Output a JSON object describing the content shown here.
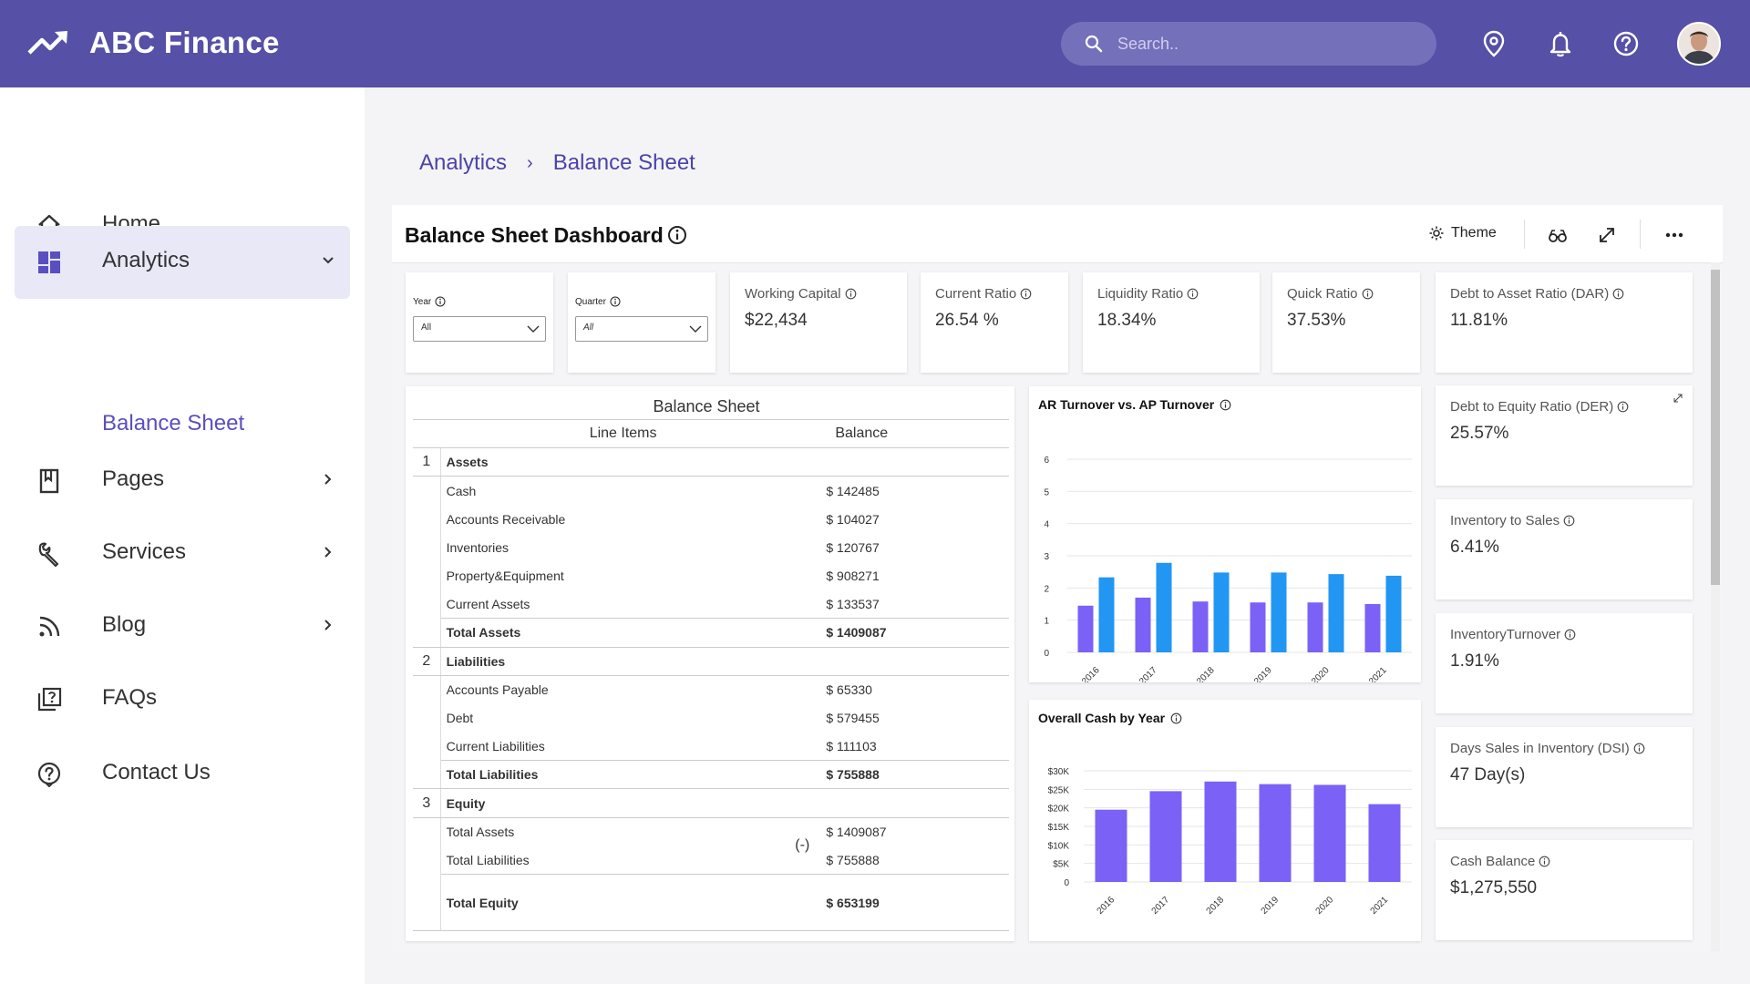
{
  "header": {
    "brand": "ABC Finance",
    "search_placeholder": "Search.."
  },
  "sidebar": {
    "items": [
      {
        "label": "Home",
        "icon": "home-icon"
      },
      {
        "label": "Analytics",
        "icon": "dashboard-icon"
      },
      {
        "label": "Pages",
        "icon": "book-icon"
      },
      {
        "label": "Services",
        "icon": "wrench-icon"
      },
      {
        "label": "Blog",
        "icon": "rss-icon"
      },
      {
        "label": "FAQs",
        "icon": "faq-icon"
      },
      {
        "label": "Contact Us",
        "icon": "help-icon"
      }
    ],
    "sub_item": "Balance Sheet"
  },
  "breadcrumb": {
    "parent": "Analytics",
    "separator": "›",
    "current": "Balance Sheet"
  },
  "dashboard": {
    "title": "Balance Sheet Dashboard",
    "theme_label": "Theme"
  },
  "filters": {
    "year": {
      "label": "Year",
      "value": "All"
    },
    "quarter": {
      "label": "Quarter",
      "value": "All"
    }
  },
  "kpis": {
    "working_capital": {
      "label": "Working Capital",
      "value": "$22,434"
    },
    "current_ratio": {
      "label": "Current Ratio",
      "value": "26.54 %"
    },
    "liquidity_ratio": {
      "label": "Liquidity Ratio",
      "value": "18.34%"
    },
    "quick_ratio": {
      "label": "Quick Ratio",
      "value": "37.53%"
    },
    "dar": {
      "label": "Debt to Asset Ratio (DAR)",
      "value": "11.81%"
    },
    "der": {
      "label": "Debt to Equity Ratio (DER)",
      "value": "25.57%"
    },
    "inv_sales": {
      "label": "Inventory to Sales",
      "value": "6.41%"
    },
    "inv_turnover": {
      "label": "InventoryTurnover",
      "value": "1.91%"
    },
    "dsi": {
      "label": "Days Sales in Inventory (DSI)",
      "value": "47 Day(s)"
    },
    "cash_balance": {
      "label": "Cash Balance",
      "value": "$1,275,550"
    }
  },
  "balance_sheet": {
    "title": "Balance Sheet",
    "col_items": "Line Items",
    "col_balance": "Balance",
    "assets": {
      "num": "1",
      "title": "Assets",
      "rows": [
        {
          "name": "Cash",
          "value": "$ 142485"
        },
        {
          "name": "Accounts Receivable",
          "value": "$ 104027"
        },
        {
          "name": "Inventories",
          "value": "$ 120767"
        },
        {
          "name": "Property&Equipment",
          "value": "$ 908271"
        },
        {
          "name": "Current Assets",
          "value": "$ 133537"
        }
      ],
      "total_label": "Total Assets",
      "total_value": "$ 1409087"
    },
    "liabilities": {
      "num": "2",
      "title": "Liabilities",
      "rows": [
        {
          "name": "Accounts Payable",
          "value": "$ 65330"
        },
        {
          "name": "Debt",
          "value": "$ 579455"
        },
        {
          "name": "Current Liabilities",
          "value": "$ 111103"
        }
      ],
      "total_label": "Total Liabilities",
      "total_value": "$ 755888"
    },
    "equity": {
      "num": "3",
      "title": "Equity",
      "rows": [
        {
          "name": "Total Assets",
          "value": "$ 1409087"
        },
        {
          "name": "Total Liabilities",
          "value": "$ 755888"
        }
      ],
      "operator": "(-)",
      "total_label": "Total Equity",
      "total_value": "$ 653199"
    }
  },
  "chart_data": [
    {
      "type": "bar",
      "title": "AR Turnover vs. AP Turnover",
      "categories": [
        "2016",
        "2017",
        "2018",
        "2019",
        "2020",
        "2021"
      ],
      "series": [
        {
          "name": "AR Turnover",
          "color": "#7b61f5",
          "values": [
            1.45,
            1.7,
            1.58,
            1.55,
            1.55,
            1.5
          ]
        },
        {
          "name": "AP Turnover",
          "color": "#2196f3",
          "values": [
            2.33,
            2.78,
            2.48,
            2.48,
            2.43,
            2.38
          ]
        }
      ],
      "yticks": [
        "0",
        "1",
        "2",
        "3",
        "4",
        "5",
        "6"
      ],
      "ylim": [
        0,
        6
      ]
    },
    {
      "type": "bar",
      "title": "Overall Cash by Year",
      "categories": [
        "2016",
        "2017",
        "2018",
        "2019",
        "2020",
        "2021"
      ],
      "series": [
        {
          "name": "Cash",
          "color": "#7b61f5",
          "values": [
            19500,
            24500,
            27100,
            26400,
            26200,
            21000
          ]
        }
      ],
      "yticks": [
        "0",
        "$5K",
        "$10K",
        "$15K",
        "$20K",
        "$25K",
        "$30K"
      ],
      "ylim": [
        0,
        30000
      ]
    }
  ]
}
